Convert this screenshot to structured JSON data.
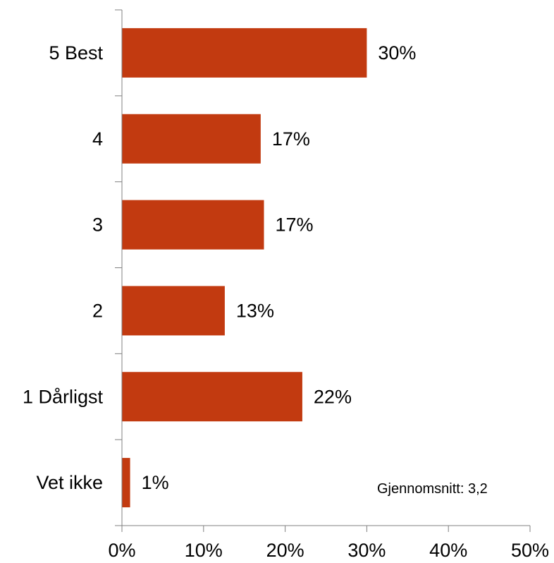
{
  "chart_data": {
    "type": "bar",
    "orientation": "horizontal",
    "categories": [
      "5 Best",
      "4",
      "3",
      "2",
      "1 Dårligst",
      "Vet ikke"
    ],
    "values": [
      30,
      17,
      17.4,
      12.6,
      22.1,
      1
    ],
    "data_labels": [
      "30%",
      "17%",
      "17%",
      "13%",
      "22%",
      "1%"
    ],
    "xlim": [
      0,
      50
    ],
    "xticks": [
      0,
      10,
      20,
      30,
      40,
      50
    ],
    "xtick_labels": [
      "0%",
      "10%",
      "20%",
      "30%",
      "40%",
      "50%"
    ],
    "title": "",
    "xlabel": "",
    "ylabel": "",
    "grid": false,
    "colors": {
      "bar": "#C23A10",
      "axis": "#808080",
      "text": "#000000"
    }
  },
  "annotation": {
    "average_text": "Gjennomsnitt: 3,2"
  }
}
